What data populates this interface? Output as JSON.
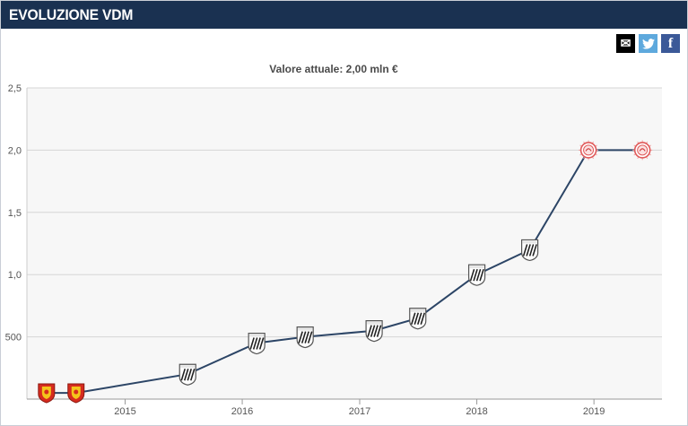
{
  "header": {
    "title": "EVOLUZIONE VDM"
  },
  "share": {
    "email_icon": "envelope-icon",
    "twitter_icon": "twitter-bird-icon",
    "facebook_icon": "facebook-f-icon",
    "email_glyph": "✉",
    "twitter_glyph": "🐦",
    "facebook_glyph": "f"
  },
  "chart_data": {
    "type": "line",
    "title": "Valore attuale: 2,00 mln €",
    "xlabel": "",
    "ylabel": "",
    "x_ticks": [
      "2015",
      "2016",
      "2017",
      "2018",
      "2019"
    ],
    "y_ticks": [
      "500",
      "1,0",
      "1,5",
      "2,0",
      "2,5"
    ],
    "ylim": [
      0,
      2.5
    ],
    "xlim": [
      "2014-03-01",
      "2019-08-01"
    ],
    "grid": true,
    "line_color": "#2c4566",
    "points": [
      {
        "x": "2014-05-01",
        "y": 0.05,
        "club": "red-yellow-crest"
      },
      {
        "x": "2014-08-01",
        "y": 0.05,
        "club": "red-yellow-crest"
      },
      {
        "x": "2015-07-15",
        "y": 0.2,
        "club": "striped-crest"
      },
      {
        "x": "2016-02-15",
        "y": 0.45,
        "club": "striped-crest"
      },
      {
        "x": "2016-07-15",
        "y": 0.5,
        "club": "striped-crest"
      },
      {
        "x": "2017-02-15",
        "y": 0.55,
        "club": "striped-crest"
      },
      {
        "x": "2017-07-01",
        "y": 0.65,
        "club": "striped-crest"
      },
      {
        "x": "2018-01-01",
        "y": 1.0,
        "club": "striped-crest"
      },
      {
        "x": "2018-06-15",
        "y": 1.2,
        "club": "striped-crest"
      },
      {
        "x": "2018-12-15",
        "y": 2.0,
        "club": "red-round-crest"
      },
      {
        "x": "2019-06-01",
        "y": 2.0,
        "club": "red-round-crest"
      }
    ]
  }
}
